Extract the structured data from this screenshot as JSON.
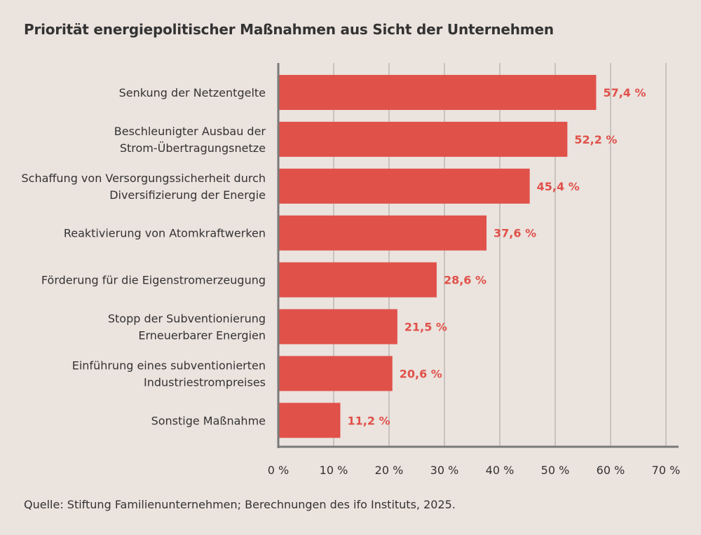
{
  "chart_data": {
    "type": "bar",
    "orientation": "horizontal",
    "title": "Priorität energiepolitischer Maßnahmen aus Sicht der Unternehmen",
    "source": "Quelle: Stiftung Familienunternehmen; Berechnungen des ifo Instituts, 2025.",
    "categories": [
      [
        "Senkung der Netzentgelte"
      ],
      [
        "Beschleunigter Ausbau der",
        "Strom-Übertragungsnetze"
      ],
      [
        "Schaffung von Versorgungssicherheit durch",
        "Diversifizierung der Energie"
      ],
      [
        "Reaktivierung von Atomkraftwerken"
      ],
      [
        "Förderung für die Eigenstromerzeugung"
      ],
      [
        "Stopp der Subventionierung",
        "Erneuerbarer Energien"
      ],
      [
        "Einführung eines subventionierten",
        "Industriestrompreises"
      ],
      [
        "Sonstige Maßnahme"
      ]
    ],
    "values": [
      57.4,
      52.2,
      45.4,
      37.6,
      28.6,
      21.5,
      20.6,
      11.2
    ],
    "value_labels": [
      "57,4 %",
      "52,2 %",
      "45,4 %",
      "37,6 %",
      "28,6 %",
      "21,5 %",
      "20,6 %",
      "11,2 %"
    ],
    "xlim": [
      0,
      70
    ],
    "xticks": [
      0,
      10,
      20,
      30,
      40,
      50,
      60,
      70
    ],
    "xtick_labels": [
      "0 %",
      "10 %",
      "20 %",
      "30 %",
      "40 %",
      "50 %",
      "60 %",
      "70 %"
    ],
    "grid": "vertical",
    "bar_color": "#e0514a",
    "label_color": "#e0514a",
    "background": "#ebe3de"
  }
}
